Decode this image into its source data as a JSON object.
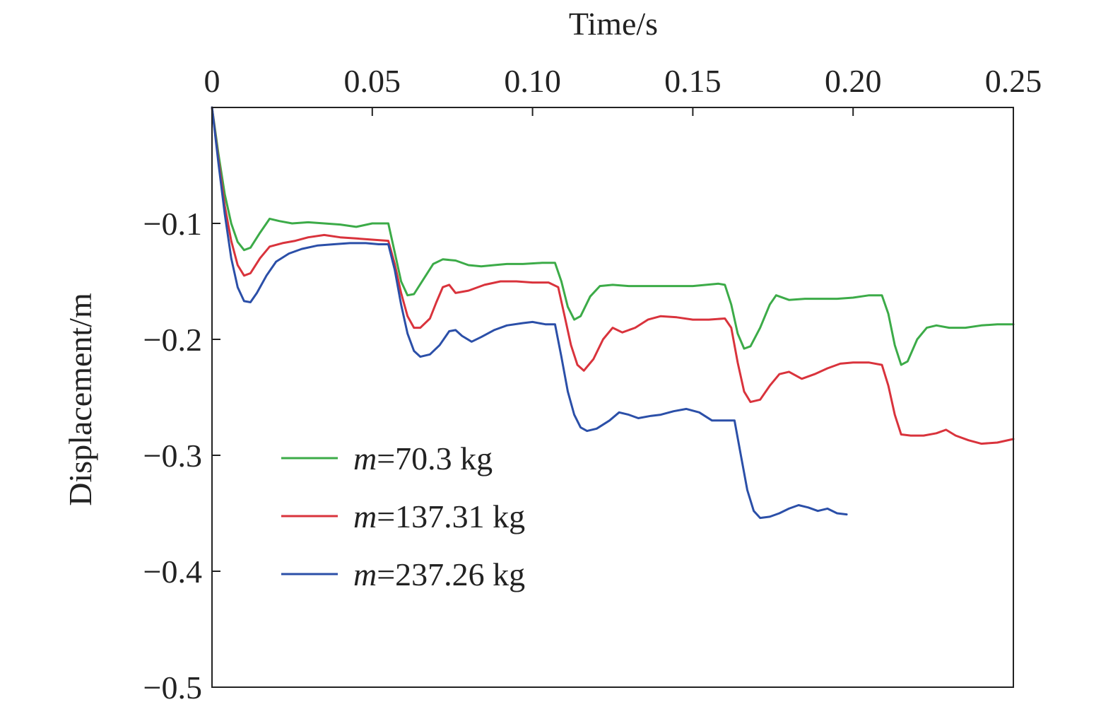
{
  "chart_data": {
    "type": "line",
    "title": "",
    "xlabel": "Time/s",
    "ylabel": "Displacement/m",
    "xlim": [
      0,
      0.25
    ],
    "ylim": [
      -0.5,
      0
    ],
    "x_axis_position": "top",
    "grid": false,
    "legend_position": "lower-left",
    "x_ticks": [
      {
        "value": 0,
        "label": "0"
      },
      {
        "value": 0.05,
        "label": "0.05"
      },
      {
        "value": 0.1,
        "label": "0.10"
      },
      {
        "value": 0.15,
        "label": "0.15"
      },
      {
        "value": 0.2,
        "label": "0.20"
      },
      {
        "value": 0.25,
        "label": "0.25"
      }
    ],
    "y_ticks": [
      {
        "value": -0.1,
        "label": "−0.1"
      },
      {
        "value": -0.2,
        "label": "−0.2"
      },
      {
        "value": -0.3,
        "label": "−0.3"
      },
      {
        "value": -0.4,
        "label": "−0.4"
      },
      {
        "value": -0.5,
        "label": "−0.5"
      }
    ],
    "series": [
      {
        "name": "m=70.3 kg",
        "name_var": "m",
        "name_rest": "=70.3 kg",
        "color": "#3cab48",
        "points": [
          [
            0,
            0
          ],
          [
            0.002,
            -0.04
          ],
          [
            0.004,
            -0.075
          ],
          [
            0.006,
            -0.1
          ],
          [
            0.008,
            -0.116
          ],
          [
            0.01,
            -0.123
          ],
          [
            0.012,
            -0.121
          ],
          [
            0.015,
            -0.108
          ],
          [
            0.018,
            -0.096
          ],
          [
            0.021,
            -0.098
          ],
          [
            0.025,
            -0.1
          ],
          [
            0.03,
            -0.099
          ],
          [
            0.035,
            -0.1
          ],
          [
            0.04,
            -0.101
          ],
          [
            0.045,
            -0.103
          ],
          [
            0.05,
            -0.1
          ],
          [
            0.055,
            -0.1
          ],
          [
            0.057,
            -0.125
          ],
          [
            0.059,
            -0.15
          ],
          [
            0.061,
            -0.162
          ],
          [
            0.063,
            -0.161
          ],
          [
            0.066,
            -0.148
          ],
          [
            0.069,
            -0.135
          ],
          [
            0.072,
            -0.131
          ],
          [
            0.076,
            -0.132
          ],
          [
            0.08,
            -0.136
          ],
          [
            0.084,
            -0.137
          ],
          [
            0.088,
            -0.136
          ],
          [
            0.092,
            -0.135
          ],
          [
            0.097,
            -0.135
          ],
          [
            0.103,
            -0.134
          ],
          [
            0.107,
            -0.134
          ],
          [
            0.109,
            -0.15
          ],
          [
            0.111,
            -0.172
          ],
          [
            0.113,
            -0.183
          ],
          [
            0.115,
            -0.18
          ],
          [
            0.118,
            -0.163
          ],
          [
            0.121,
            -0.154
          ],
          [
            0.125,
            -0.153
          ],
          [
            0.13,
            -0.154
          ],
          [
            0.14,
            -0.154
          ],
          [
            0.15,
            -0.154
          ],
          [
            0.158,
            -0.152
          ],
          [
            0.16,
            -0.153
          ],
          [
            0.162,
            -0.17
          ],
          [
            0.164,
            -0.195
          ],
          [
            0.166,
            -0.208
          ],
          [
            0.168,
            -0.206
          ],
          [
            0.171,
            -0.19
          ],
          [
            0.174,
            -0.17
          ],
          [
            0.176,
            -0.162
          ],
          [
            0.18,
            -0.166
          ],
          [
            0.185,
            -0.165
          ],
          [
            0.19,
            -0.165
          ],
          [
            0.195,
            -0.165
          ],
          [
            0.2,
            -0.164
          ],
          [
            0.205,
            -0.162
          ],
          [
            0.209,
            -0.162
          ],
          [
            0.211,
            -0.178
          ],
          [
            0.213,
            -0.205
          ],
          [
            0.215,
            -0.222
          ],
          [
            0.217,
            -0.219
          ],
          [
            0.22,
            -0.2
          ],
          [
            0.223,
            -0.19
          ],
          [
            0.226,
            -0.188
          ],
          [
            0.23,
            -0.19
          ],
          [
            0.235,
            -0.19
          ],
          [
            0.24,
            -0.188
          ],
          [
            0.245,
            -0.187
          ],
          [
            0.25,
            -0.187
          ]
        ]
      },
      {
        "name": "m=137.31 kg",
        "name_var": "m",
        "name_rest": "=137.31 kg",
        "color": "#d9333c",
        "points": [
          [
            0,
            0
          ],
          [
            0.002,
            -0.045
          ],
          [
            0.004,
            -0.085
          ],
          [
            0.006,
            -0.115
          ],
          [
            0.008,
            -0.136
          ],
          [
            0.01,
            -0.145
          ],
          [
            0.012,
            -0.143
          ],
          [
            0.015,
            -0.13
          ],
          [
            0.018,
            -0.12
          ],
          [
            0.022,
            -0.117
          ],
          [
            0.026,
            -0.115
          ],
          [
            0.03,
            -0.112
          ],
          [
            0.035,
            -0.11
          ],
          [
            0.04,
            -0.112
          ],
          [
            0.045,
            -0.113
          ],
          [
            0.05,
            -0.114
          ],
          [
            0.055,
            -0.115
          ],
          [
            0.057,
            -0.135
          ],
          [
            0.059,
            -0.16
          ],
          [
            0.061,
            -0.18
          ],
          [
            0.063,
            -0.19
          ],
          [
            0.065,
            -0.19
          ],
          [
            0.068,
            -0.182
          ],
          [
            0.07,
            -0.168
          ],
          [
            0.072,
            -0.155
          ],
          [
            0.074,
            -0.153
          ],
          [
            0.076,
            -0.16
          ],
          [
            0.08,
            -0.158
          ],
          [
            0.085,
            -0.153
          ],
          [
            0.09,
            -0.15
          ],
          [
            0.095,
            -0.15
          ],
          [
            0.1,
            -0.151
          ],
          [
            0.105,
            -0.151
          ],
          [
            0.108,
            -0.155
          ],
          [
            0.11,
            -0.18
          ],
          [
            0.112,
            -0.205
          ],
          [
            0.114,
            -0.222
          ],
          [
            0.116,
            -0.227
          ],
          [
            0.119,
            -0.217
          ],
          [
            0.122,
            -0.2
          ],
          [
            0.125,
            -0.19
          ],
          [
            0.128,
            -0.194
          ],
          [
            0.132,
            -0.19
          ],
          [
            0.136,
            -0.183
          ],
          [
            0.14,
            -0.18
          ],
          [
            0.145,
            -0.181
          ],
          [
            0.15,
            -0.183
          ],
          [
            0.155,
            -0.183
          ],
          [
            0.16,
            -0.182
          ],
          [
            0.162,
            -0.19
          ],
          [
            0.164,
            -0.22
          ],
          [
            0.166,
            -0.245
          ],
          [
            0.168,
            -0.254
          ],
          [
            0.171,
            -0.252
          ],
          [
            0.174,
            -0.24
          ],
          [
            0.177,
            -0.23
          ],
          [
            0.18,
            -0.228
          ],
          [
            0.184,
            -0.234
          ],
          [
            0.188,
            -0.23
          ],
          [
            0.192,
            -0.225
          ],
          [
            0.196,
            -0.221
          ],
          [
            0.2,
            -0.22
          ],
          [
            0.205,
            -0.22
          ],
          [
            0.209,
            -0.222
          ],
          [
            0.211,
            -0.24
          ],
          [
            0.213,
            -0.265
          ],
          [
            0.215,
            -0.282
          ],
          [
            0.218,
            -0.283
          ],
          [
            0.222,
            -0.283
          ],
          [
            0.226,
            -0.281
          ],
          [
            0.229,
            -0.278
          ],
          [
            0.232,
            -0.283
          ],
          [
            0.236,
            -0.287
          ],
          [
            0.24,
            -0.29
          ],
          [
            0.245,
            -0.289
          ],
          [
            0.25,
            -0.286
          ]
        ]
      },
      {
        "name": "m=237.26 kg",
        "name_var": "m",
        "name_rest": "=237.26 kg",
        "color": "#2b4fa8",
        "points": [
          [
            0,
            0
          ],
          [
            0.002,
            -0.048
          ],
          [
            0.004,
            -0.092
          ],
          [
            0.006,
            -0.13
          ],
          [
            0.008,
            -0.155
          ],
          [
            0.01,
            -0.167
          ],
          [
            0.012,
            -0.168
          ],
          [
            0.014,
            -0.16
          ],
          [
            0.017,
            -0.145
          ],
          [
            0.02,
            -0.133
          ],
          [
            0.024,
            -0.126
          ],
          [
            0.028,
            -0.122
          ],
          [
            0.033,
            -0.119
          ],
          [
            0.038,
            -0.118
          ],
          [
            0.043,
            -0.117
          ],
          [
            0.048,
            -0.117
          ],
          [
            0.052,
            -0.118
          ],
          [
            0.055,
            -0.118
          ],
          [
            0.057,
            -0.14
          ],
          [
            0.059,
            -0.17
          ],
          [
            0.061,
            -0.195
          ],
          [
            0.063,
            -0.21
          ],
          [
            0.065,
            -0.215
          ],
          [
            0.068,
            -0.213
          ],
          [
            0.071,
            -0.205
          ],
          [
            0.074,
            -0.193
          ],
          [
            0.076,
            -0.192
          ],
          [
            0.078,
            -0.197
          ],
          [
            0.081,
            -0.202
          ],
          [
            0.084,
            -0.198
          ],
          [
            0.088,
            -0.192
          ],
          [
            0.092,
            -0.188
          ],
          [
            0.097,
            -0.186
          ],
          [
            0.1,
            -0.185
          ],
          [
            0.104,
            -0.187
          ],
          [
            0.107,
            -0.187
          ],
          [
            0.109,
            -0.215
          ],
          [
            0.111,
            -0.245
          ],
          [
            0.113,
            -0.265
          ],
          [
            0.115,
            -0.276
          ],
          [
            0.117,
            -0.279
          ],
          [
            0.12,
            -0.277
          ],
          [
            0.124,
            -0.27
          ],
          [
            0.127,
            -0.263
          ],
          [
            0.13,
            -0.265
          ],
          [
            0.133,
            -0.268
          ],
          [
            0.137,
            -0.266
          ],
          [
            0.14,
            -0.265
          ],
          [
            0.144,
            -0.262
          ],
          [
            0.148,
            -0.26
          ],
          [
            0.152,
            -0.263
          ],
          [
            0.156,
            -0.27
          ],
          [
            0.16,
            -0.27
          ],
          [
            0.163,
            -0.27
          ],
          [
            0.165,
            -0.3
          ],
          [
            0.167,
            -0.33
          ],
          [
            0.169,
            -0.348
          ],
          [
            0.171,
            -0.354
          ],
          [
            0.174,
            -0.353
          ],
          [
            0.177,
            -0.35
          ],
          [
            0.18,
            -0.346
          ],
          [
            0.183,
            -0.343
          ],
          [
            0.186,
            -0.345
          ],
          [
            0.189,
            -0.348
          ],
          [
            0.192,
            -0.346
          ],
          [
            0.195,
            -0.35
          ],
          [
            0.198,
            -0.351
          ]
        ]
      }
    ]
  }
}
